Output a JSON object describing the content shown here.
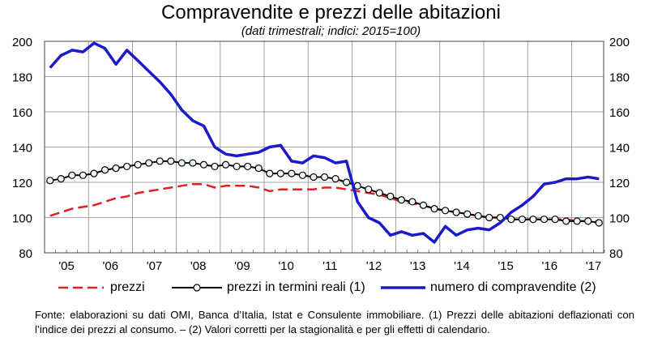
{
  "title": "Compravendite e prezzi delle abitazioni",
  "subtitle": "(dati trimestrali; indici: 2015=100)",
  "footnote": "Fonte: elaborazioni su dati OMI, Banca d’Italia, Istat e Consulente immobiliare. (1) Prezzi delle abitazioni deflazionati con l’indice dei prezzi al consumo. – (2) Valori corretti per la stagionalità e per gli effetti di calendario.",
  "chart_data": {
    "type": "line",
    "title": "Compravendite e prezzi delle abitazioni",
    "x_start": "2005 Q1",
    "x_end": "2017 Q3",
    "frequency": "quarterly",
    "x_tick_labels": [
      "'05",
      "'06",
      "'07",
      "'08",
      "'09",
      "'10",
      "'11",
      "'12",
      "'13",
      "'14",
      "'15",
      "'16",
      "'17"
    ],
    "ylim": [
      80,
      200
    ],
    "y_ticks": [
      80,
      100,
      120,
      140,
      160,
      180,
      200
    ],
    "y2lim": [
      80,
      200
    ],
    "grid": true,
    "legend": "bottom",
    "series": [
      {
        "name": "prezzi",
        "color": "#e02020",
        "style": "dashed",
        "values": [
          101,
          103,
          105,
          106,
          107,
          109,
          111,
          112,
          114,
          115,
          116,
          117,
          118,
          119,
          119,
          117,
          118,
          118,
          118,
          117,
          115,
          116,
          116,
          116,
          116,
          117,
          117,
          116,
          115,
          114,
          113,
          111,
          109,
          108,
          107,
          105,
          104,
          103,
          102,
          101,
          100,
          100,
          99,
          99,
          99,
          99,
          99,
          99,
          98,
          98,
          98
        ]
      },
      {
        "name": "prezzi in termini reali (1)",
        "color": "#000000",
        "style": "line-circles",
        "values": [
          121,
          122,
          124,
          124,
          125,
          127,
          128,
          129,
          130,
          131,
          132,
          132,
          131,
          131,
          130,
          129,
          130,
          129,
          129,
          128,
          125,
          125,
          125,
          124,
          123,
          123,
          122,
          120,
          118,
          116,
          114,
          112,
          110,
          109,
          107,
          105,
          104,
          103,
          102,
          101,
          100,
          100,
          99,
          99,
          99,
          99,
          99,
          98,
          98,
          98,
          97
        ]
      },
      {
        "name": "numero di compravendite (2)",
        "color": "#1a1acc",
        "style": "solid",
        "values": [
          185,
          192,
          195,
          194,
          199,
          196,
          187,
          195,
          189,
          183,
          177,
          170,
          161,
          155,
          152,
          140,
          136,
          135,
          136,
          137,
          140,
          141,
          132,
          131,
          135,
          134,
          131,
          132,
          109,
          100,
          97,
          90,
          92,
          90,
          91,
          86,
          95,
          90,
          93,
          94,
          93,
          97,
          103,
          107,
          112,
          119,
          120,
          122,
          122,
          123,
          122
        ]
      }
    ]
  }
}
